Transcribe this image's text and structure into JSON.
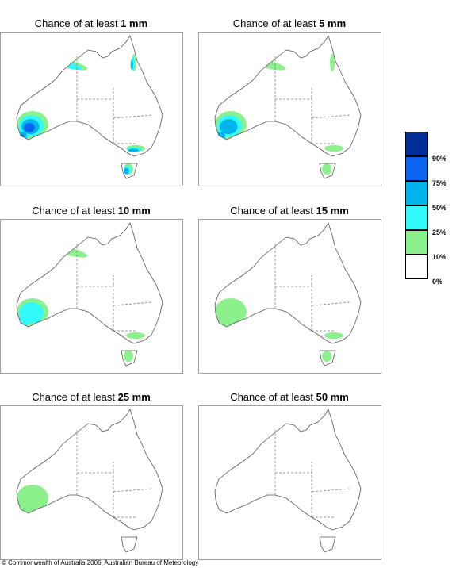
{
  "panels": [
    {
      "prefix": "Chance of at least",
      "amount": "1 mm",
      "zones": [
        {
          "region": "southwest",
          "level": 4
        },
        {
          "region": "north-kimberley",
          "level": 2
        },
        {
          "region": "east-coast-qld",
          "level": 3
        },
        {
          "region": "victoria",
          "level": 3
        },
        {
          "region": "tasmania",
          "level": 3
        }
      ]
    },
    {
      "prefix": "Chance of at least",
      "amount": "5 mm",
      "zones": [
        {
          "region": "southwest",
          "level": 3
        },
        {
          "region": "north-kimberley",
          "level": 1
        },
        {
          "region": "east-coast-qld",
          "level": 1
        },
        {
          "region": "victoria",
          "level": 1
        },
        {
          "region": "tasmania",
          "level": 1
        }
      ]
    },
    {
      "prefix": "Chance of at least",
      "amount": "10 mm",
      "zones": [
        {
          "region": "southwest",
          "level": 2
        },
        {
          "region": "north-kimberley",
          "level": 1
        },
        {
          "region": "victoria",
          "level": 1
        },
        {
          "region": "tasmania",
          "level": 1
        }
      ]
    },
    {
      "prefix": "Chance of at least",
      "amount": "15 mm",
      "zones": [
        {
          "region": "southwest",
          "level": 1
        },
        {
          "region": "victoria",
          "level": 1
        },
        {
          "region": "tasmania",
          "level": 1
        }
      ]
    },
    {
      "prefix": "Chance of at least",
      "amount": "25 mm",
      "zones": [
        {
          "region": "southwest",
          "level": 1
        }
      ]
    },
    {
      "prefix": "Chance of at least",
      "amount": "50 mm",
      "zones": []
    }
  ],
  "legend": {
    "bands": [
      {
        "label": "90%",
        "color": "#002d96"
      },
      {
        "label": "75%",
        "color": "#0a64f0"
      },
      {
        "label": "50%",
        "color": "#00b4ec"
      },
      {
        "label": "25%",
        "color": "#32fafa"
      },
      {
        "label": "10%",
        "color": "#8cf08c"
      },
      {
        "label": "0%",
        "color": "#ffffff"
      }
    ]
  },
  "copyright": "© Commonwealth of Australia 2006, Australian Bureau of Meteorology"
}
